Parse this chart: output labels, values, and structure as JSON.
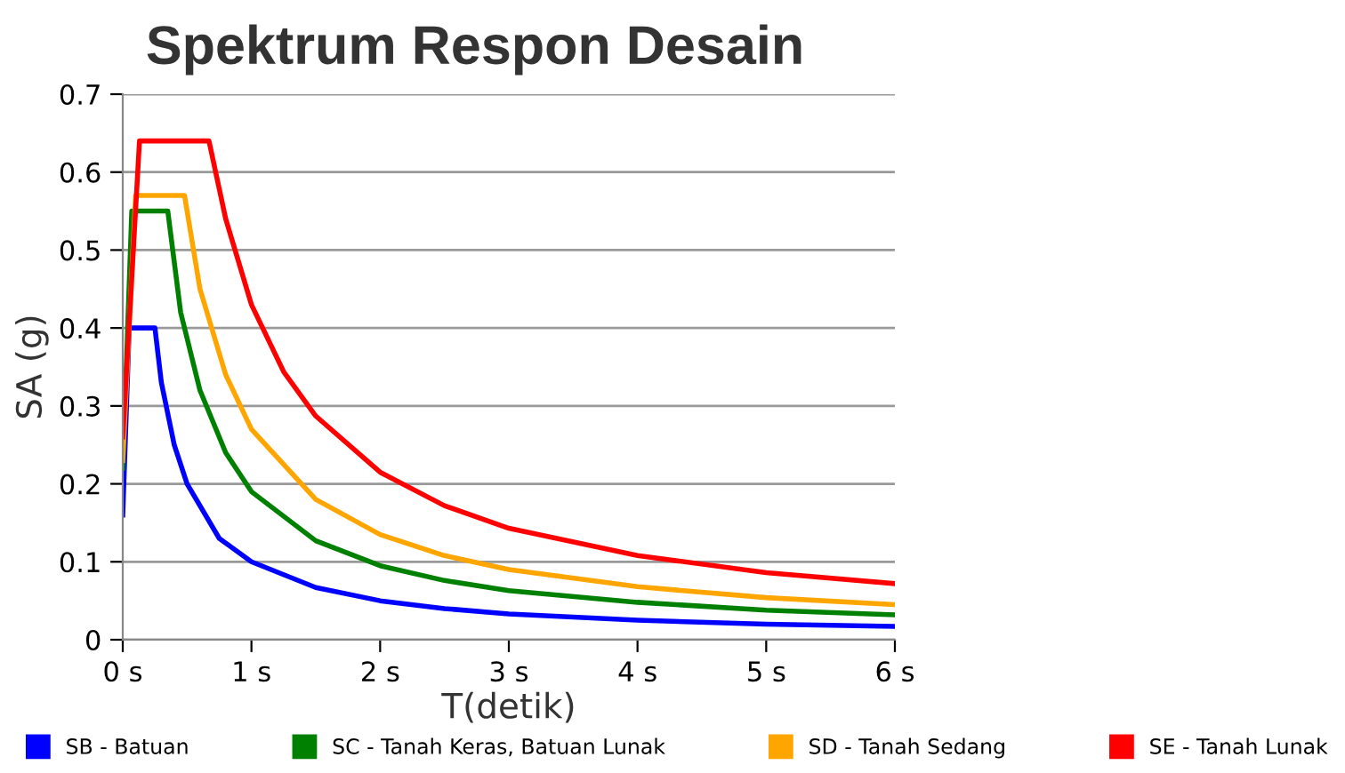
{
  "chart_data": {
    "type": "line",
    "title": "Spektrum Respon Desain",
    "xlabel": "T(detik)",
    "ylabel": "SA (g)",
    "xlim": [
      0,
      6
    ],
    "ylim": [
      0,
      0.7
    ],
    "xticks": [
      {
        "value": 0,
        "label": "0 s"
      },
      {
        "value": 1,
        "label": "1 s"
      },
      {
        "value": 2,
        "label": "2 s"
      },
      {
        "value": 3,
        "label": "3 s"
      },
      {
        "value": 4,
        "label": "4 s"
      },
      {
        "value": 5,
        "label": "5 s"
      },
      {
        "value": 6,
        "label": "6 s"
      }
    ],
    "yticks": [
      0,
      0.1,
      0.2,
      0.3,
      0.4,
      0.5,
      0.6,
      0.7
    ],
    "grid": "y",
    "legend": "bottom",
    "marker": "none",
    "line_style": "solid",
    "series": [
      {
        "name": "SB - Batuan",
        "color": "#0000ff",
        "x": [
          0,
          0.05,
          0.25,
          0.3,
          0.4,
          0.5,
          0.75,
          1,
          1.5,
          2,
          2.5,
          3,
          4,
          5,
          6
        ],
        "values": [
          0.16,
          0.4,
          0.4,
          0.33,
          0.25,
          0.2,
          0.13,
          0.1,
          0.067,
          0.05,
          0.04,
          0.033,
          0.025,
          0.02,
          0.017
        ]
      },
      {
        "name": "SC - Tanah Keras, Batuan Lunak",
        "color": "#008000",
        "x": [
          0,
          0.07,
          0.35,
          0.45,
          0.6,
          0.8,
          1,
          1.5,
          2,
          2.5,
          3,
          4,
          5,
          6
        ],
        "values": [
          0.22,
          0.55,
          0.55,
          0.42,
          0.32,
          0.24,
          0.19,
          0.127,
          0.095,
          0.076,
          0.063,
          0.048,
          0.038,
          0.032
        ]
      },
      {
        "name": "SD - Tanah Sedang",
        "color": "#ffa500",
        "x": [
          0,
          0.1,
          0.48,
          0.6,
          0.8,
          1,
          1.5,
          2,
          2.5,
          3,
          4,
          5,
          6
        ],
        "values": [
          0.23,
          0.57,
          0.57,
          0.45,
          0.34,
          0.27,
          0.18,
          0.135,
          0.108,
          0.09,
          0.068,
          0.054,
          0.045
        ]
      },
      {
        "name": "SE - Tanah Lunak",
        "color": "#ff0000",
        "x": [
          0,
          0.13,
          0.67,
          0.8,
          1,
          1.25,
          1.5,
          2,
          2.5,
          3,
          4,
          5,
          6
        ],
        "values": [
          0.26,
          0.64,
          0.64,
          0.54,
          0.43,
          0.344,
          0.287,
          0.215,
          0.172,
          0.143,
          0.108,
          0.086,
          0.072
        ]
      }
    ]
  }
}
